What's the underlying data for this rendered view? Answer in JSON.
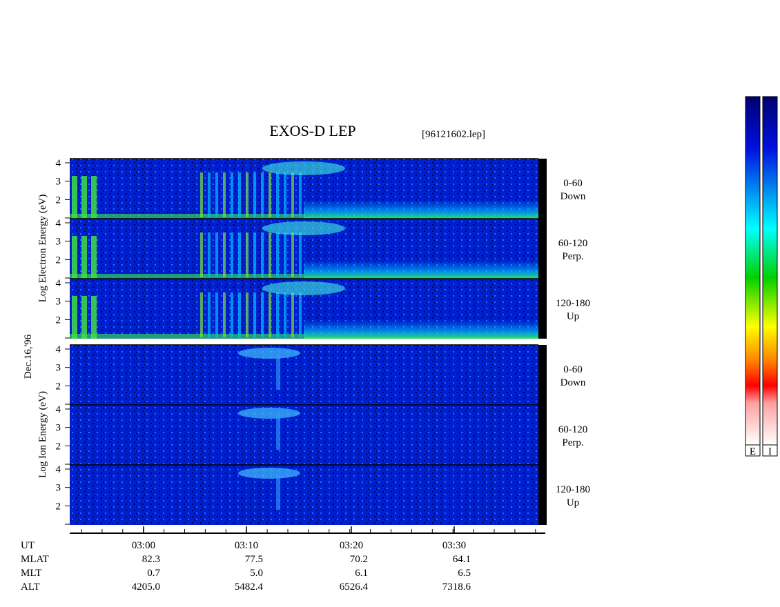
{
  "header": {
    "title": "EXOS-D LEP",
    "file": "[96121602.lep]"
  },
  "electron_axis_label": "Log Electron Energy (eV)",
  "ion_axis_label": "Log Ion Energy (eV)",
  "date": "Dec.16,'96",
  "energy_ticks": [
    4,
    3,
    2
  ],
  "panels": [
    {
      "range": "0-60",
      "direction": "Down"
    },
    {
      "range": "60-120",
      "direction": "Perp."
    },
    {
      "range": "120-180",
      "direction": "Up"
    }
  ],
  "time_ticks": [
    "03:00",
    "03:10",
    "03:20",
    "03:30"
  ],
  "table": {
    "rows": [
      {
        "label": "UT",
        "values": []
      },
      {
        "label": "MLAT",
        "values": [
          "82.3",
          "77.5",
          "70.2",
          "64.1"
        ]
      },
      {
        "label": "MLT",
        "values": [
          "0.7",
          "5.0",
          "6.1",
          "6.5"
        ]
      },
      {
        "label": "ALT",
        "values": [
          "4205.0",
          "5482.4",
          "6526.4",
          "7318.6"
        ]
      }
    ]
  },
  "colorbars": [
    "E",
    "I"
  ]
}
